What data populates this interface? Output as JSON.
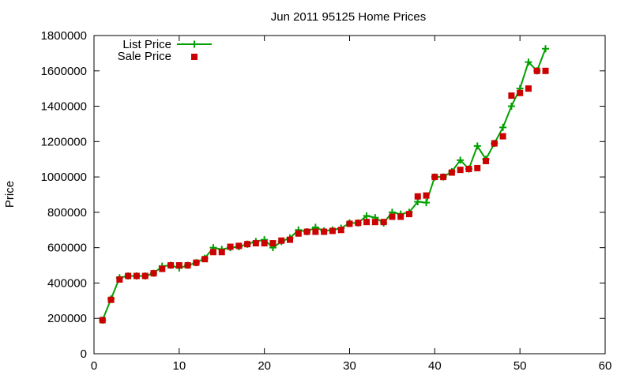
{
  "chart_data": {
    "type": "line",
    "title": "Jun 2011 95125 Home Prices",
    "xlabel": "",
    "ylabel": "Price",
    "xlim": [
      0,
      60
    ],
    "ylim": [
      0,
      1800000
    ],
    "xticks": [
      0,
      10,
      20,
      30,
      40,
      50,
      60
    ],
    "yticks": [
      0,
      200000,
      400000,
      600000,
      800000,
      1000000,
      1200000,
      1400000,
      1600000,
      1800000
    ],
    "grid": false,
    "legend": "top-left",
    "series": [
      {
        "name": "List Price",
        "style": "line-with-plus-markers",
        "color": "#00a000",
        "x": [
          1,
          2,
          3,
          4,
          5,
          6,
          7,
          8,
          9,
          10,
          11,
          12,
          13,
          14,
          15,
          16,
          17,
          18,
          19,
          20,
          21,
          22,
          23,
          24,
          25,
          26,
          27,
          28,
          29,
          30,
          31,
          32,
          33,
          34,
          35,
          36,
          37,
          38,
          39,
          40,
          41,
          42,
          43,
          44,
          45,
          46,
          47,
          48,
          49,
          50,
          51,
          52,
          53
        ],
        "values": [
          190000,
          310000,
          430000,
          440000,
          440000,
          440000,
          455000,
          495000,
          500000,
          485000,
          500000,
          515000,
          540000,
          600000,
          590000,
          600000,
          605000,
          620000,
          635000,
          645000,
          600000,
          635000,
          655000,
          700000,
          690000,
          715000,
          695000,
          700000,
          710000,
          740000,
          740000,
          780000,
          770000,
          740000,
          800000,
          790000,
          800000,
          860000,
          855000,
          1000000,
          1000000,
          1030000,
          1095000,
          1045000,
          1175000,
          1100000,
          1190000,
          1280000,
          1400000,
          1500000,
          1650000,
          1600000,
          1725000
        ]
      },
      {
        "name": "Sale Price",
        "style": "square-markers",
        "color": "#cc0000",
        "x": [
          1,
          2,
          3,
          4,
          5,
          6,
          7,
          8,
          9,
          10,
          11,
          12,
          13,
          14,
          15,
          16,
          17,
          18,
          19,
          20,
          21,
          22,
          23,
          24,
          25,
          26,
          27,
          28,
          29,
          30,
          31,
          32,
          33,
          34,
          35,
          36,
          37,
          38,
          39,
          40,
          41,
          42,
          43,
          44,
          45,
          46,
          47,
          48,
          49,
          50,
          51,
          52,
          53
        ],
        "values": [
          190000,
          305000,
          420000,
          440000,
          440000,
          440000,
          455000,
          480000,
          500000,
          500000,
          500000,
          515000,
          535000,
          575000,
          575000,
          605000,
          610000,
          620000,
          625000,
          625000,
          625000,
          640000,
          645000,
          680000,
          690000,
          690000,
          690000,
          695000,
          700000,
          735000,
          740000,
          745000,
          745000,
          745000,
          775000,
          775000,
          790000,
          890000,
          895000,
          1000000,
          1000000,
          1025000,
          1040000,
          1045000,
          1050000,
          1090000,
          1190000,
          1230000,
          1460000,
          1475000,
          1500000,
          1600000,
          1600000
        ]
      }
    ]
  }
}
